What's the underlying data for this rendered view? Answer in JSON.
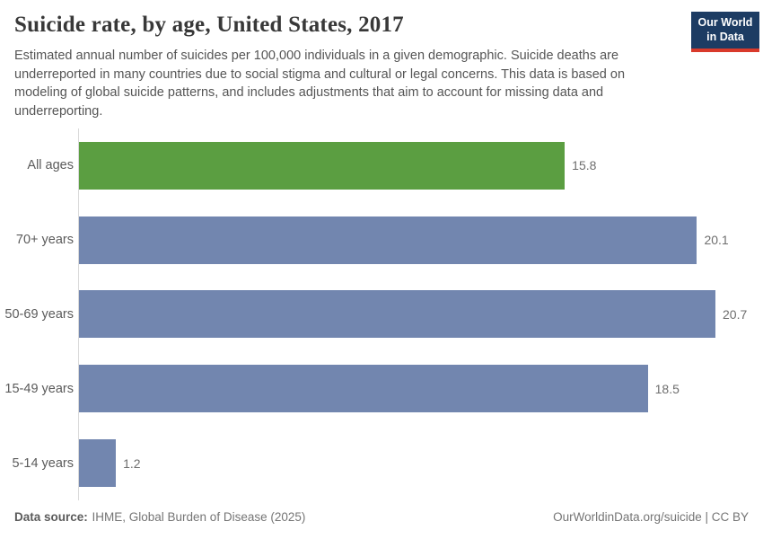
{
  "header": {
    "title": "Suicide rate, by age, United States, 2017",
    "subtitle": "Estimated annual number of suicides per 100,000 individuals in a given demographic. Suicide deaths are underreported in many countries due to social stigma and cultural or legal concerns. This data is based on modeling of global suicide patterns, and includes adjustments that aim to account for missing data and underreporting."
  },
  "logo": {
    "line1": "Our World",
    "line2": "in Data",
    "background_color": "#1d3c63",
    "accent_color": "#d93a2b"
  },
  "chart_data": {
    "type": "bar",
    "orientation": "horizontal",
    "categories": [
      "All ages",
      "70+ years",
      "50-69 years",
      "15-49 years",
      "5-14 years"
    ],
    "values": [
      15.8,
      20.1,
      20.7,
      18.5,
      1.2
    ],
    "value_labels": [
      "15.8",
      "20.1",
      "20.7",
      "18.5",
      "1.2"
    ],
    "bar_colors": [
      "#5b9e41",
      "#7286af",
      "#7286af",
      "#7286af",
      "#7286af"
    ],
    "title": "Suicide rate, by age, United States, 2017",
    "xlabel": "",
    "ylabel": "",
    "xlim": [
      0,
      20.7
    ],
    "grid": false,
    "legend": "none",
    "value_labels_shown": true
  },
  "footer": {
    "datasource_label": "Data source:",
    "datasource_value": "IHME, Global Burden of Disease (2025)",
    "right_text": "OurWorldinData.org/suicide | CC BY"
  }
}
